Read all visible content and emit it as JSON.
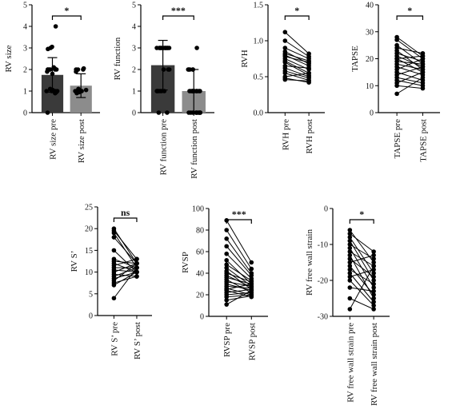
{
  "chart_data": [
    {
      "id": "rv-size",
      "type": "bar",
      "ylabel": "RV size",
      "ylim": [
        0,
        5
      ],
      "yticks": [
        0,
        1,
        2,
        3,
        4,
        5
      ],
      "categories": [
        "RV size pre",
        "RV size post"
      ],
      "values": [
        1.75,
        1.25
      ],
      "errors": [
        0.8,
        0.55
      ],
      "bar_colors": [
        "#3a3a3a",
        "#8c8c8c"
      ],
      "points": [
        [
          0,
          0.9,
          0.95,
          1,
          1,
          1,
          1,
          1,
          1.05,
          1.1,
          1.8,
          1.9,
          2,
          2,
          2,
          2,
          2,
          2,
          2.05,
          2.1,
          2.95,
          3,
          3.05,
          4
        ],
        [
          0.9,
          0.95,
          1,
          1,
          1,
          1,
          1,
          1,
          1,
          1.05,
          1.1,
          1.9,
          2,
          2,
          2,
          2.05
        ]
      ],
      "significance": "*"
    },
    {
      "id": "rv-function",
      "type": "bar",
      "ylabel": "RV function",
      "ylim": [
        0,
        5
      ],
      "yticks": [
        0,
        1,
        2,
        3,
        4,
        5
      ],
      "categories": [
        "RV function pre",
        "RV function post"
      ],
      "values": [
        2.2,
        1.0
      ],
      "errors": [
        1.15,
        1.0
      ],
      "bar_colors": [
        "#3a3a3a",
        "#8c8c8c"
      ],
      "points": [
        [
          0,
          0,
          1,
          1,
          1,
          1,
          1,
          1,
          1,
          2,
          2,
          2,
          3,
          3,
          3,
          3,
          3,
          3,
          3,
          3,
          3,
          3,
          3,
          3,
          3
        ],
        [
          0,
          0,
          0,
          0,
          0,
          0,
          0,
          0,
          0,
          0,
          1,
          1,
          1,
          1,
          1,
          1,
          1,
          1,
          1,
          1,
          1,
          1,
          1,
          1,
          2,
          2,
          2,
          2,
          2,
          3
        ]
      ],
      "significance": "***"
    },
    {
      "id": "rvh",
      "type": "line",
      "ylabel": "RVH",
      "ylim": [
        0,
        1.5
      ],
      "yticks": [
        0.0,
        0.5,
        1.0,
        1.5
      ],
      "categories": [
        "RVH pre",
        "RVH post"
      ],
      "pairs": [
        [
          1.12,
          0.82
        ],
        [
          1.0,
          0.78
        ],
        [
          0.9,
          0.75
        ],
        [
          0.85,
          0.68
        ],
        [
          0.82,
          0.72
        ],
        [
          0.8,
          0.65
        ],
        [
          0.78,
          0.7
        ],
        [
          0.75,
          0.6
        ],
        [
          0.72,
          0.55
        ],
        [
          0.7,
          0.52
        ],
        [
          0.65,
          0.62
        ],
        [
          0.62,
          0.5
        ],
        [
          0.58,
          0.48
        ],
        [
          0.55,
          0.45
        ],
        [
          0.5,
          0.55
        ],
        [
          0.48,
          0.42
        ],
        [
          0.46,
          0.44
        ]
      ],
      "significance": "*"
    },
    {
      "id": "tapse",
      "type": "line",
      "ylabel": "TAPSE",
      "ylim": [
        0,
        40
      ],
      "yticks": [
        0,
        10,
        20,
        30,
        40
      ],
      "categories": [
        "TAPSE pre",
        "TAPSE post"
      ],
      "pairs": [
        [
          28,
          21
        ],
        [
          27,
          20
        ],
        [
          25,
          18
        ],
        [
          24,
          22
        ],
        [
          23,
          16
        ],
        [
          22,
          19
        ],
        [
          21,
          17
        ],
        [
          20,
          15
        ],
        [
          20,
          21
        ],
        [
          19,
          18
        ],
        [
          18,
          16
        ],
        [
          17,
          14
        ],
        [
          16,
          20
        ],
        [
          15,
          12
        ],
        [
          14,
          17
        ],
        [
          13,
          11
        ],
        [
          12,
          10
        ],
        [
          11,
          15
        ],
        [
          10,
          9
        ],
        [
          7,
          13
        ]
      ],
      "significance": "*"
    },
    {
      "id": "rv-s",
      "type": "line",
      "ylabel": "RV S’",
      "ylim": [
        0,
        25
      ],
      "yticks": [
        0,
        5,
        10,
        15,
        20,
        25
      ],
      "categories": [
        "RV S’ pre",
        "RV S’ post"
      ],
      "pairs": [
        [
          20,
          12
        ],
        [
          19.5,
          13
        ],
        [
          19,
          11
        ],
        [
          18,
          12
        ],
        [
          15,
          10
        ],
        [
          13,
          11
        ],
        [
          12.5,
          12
        ],
        [
          12,
          10
        ],
        [
          11.5,
          13
        ],
        [
          11,
          11
        ],
        [
          10.5,
          10
        ],
        [
          10,
          12
        ],
        [
          9.5,
          9
        ],
        [
          9,
          11
        ],
        [
          8.5,
          10
        ],
        [
          8,
          12
        ],
        [
          7.5,
          9
        ],
        [
          7,
          10
        ],
        [
          4,
          11
        ]
      ],
      "significance": "ns"
    },
    {
      "id": "rvsp",
      "type": "line",
      "ylabel": "RVSP",
      "ylim": [
        0,
        100
      ],
      "yticks": [
        0,
        20,
        40,
        60,
        80,
        100
      ],
      "categories": [
        "RVSP pre",
        "RVSP post"
      ],
      "pairs": [
        [
          89,
          50
        ],
        [
          80,
          44
        ],
        [
          72,
          40
        ],
        [
          65,
          38
        ],
        [
          58,
          35
        ],
        [
          52,
          30
        ],
        [
          48,
          33
        ],
        [
          45,
          28
        ],
        [
          42,
          25
        ],
        [
          40,
          32
        ],
        [
          38,
          27
        ],
        [
          36,
          30
        ],
        [
          34,
          22
        ],
        [
          32,
          28
        ],
        [
          30,
          24
        ],
        [
          28,
          26
        ],
        [
          26,
          20
        ],
        [
          25,
          30
        ],
        [
          24,
          18
        ],
        [
          22,
          25
        ],
        [
          20,
          22
        ],
        [
          18,
          20
        ],
        [
          15,
          19
        ],
        [
          11,
          24
        ]
      ],
      "significance": "***"
    },
    {
      "id": "rv-fw-strain",
      "type": "line",
      "ylabel": "RV free wall strain",
      "ylim": [
        -30,
        0
      ],
      "yticks": [
        -30,
        -20,
        -10,
        0
      ],
      "categories": [
        "RV free wall strain pre",
        "RV free wall strain post"
      ],
      "pairs": [
        [
          -6,
          -15
        ],
        [
          -7,
          -12
        ],
        [
          -8,
          -18
        ],
        [
          -9,
          -20
        ],
        [
          -10,
          -14
        ],
        [
          -11,
          -22
        ],
        [
          -12,
          -16
        ],
        [
          -13,
          -25
        ],
        [
          -14,
          -19
        ],
        [
          -15,
          -13
        ],
        [
          -16,
          -24
        ],
        [
          -17,
          -21
        ],
        [
          -18,
          -26
        ],
        [
          -19,
          -17
        ],
        [
          -20,
          -27
        ],
        [
          -22,
          -23
        ],
        [
          -25,
          -28
        ],
        [
          -28,
          -16
        ]
      ],
      "significance": "*"
    }
  ]
}
